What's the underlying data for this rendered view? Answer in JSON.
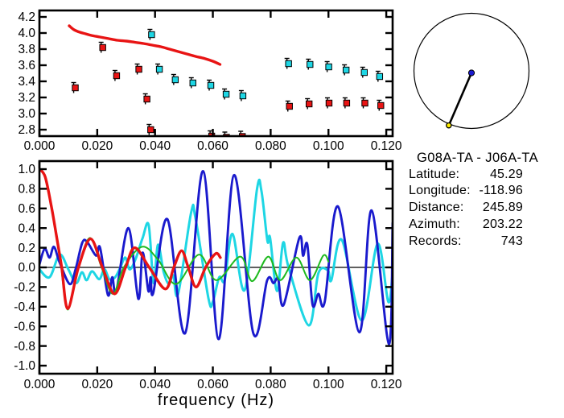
{
  "colors": {
    "red": "#e81414",
    "cyan": "#1ed6e4",
    "blue": "#1a1acd",
    "green": "#1fba1f",
    "yellow": "#ffee00",
    "axis": "#000000",
    "background": "#ffffff"
  },
  "info": {
    "station_pair": "G08A-TA - J06A-TA",
    "rows": [
      {
        "label": "Latitude:",
        "value": "45.29"
      },
      {
        "label": "Longitude:",
        "value": "-118.96"
      },
      {
        "label": "Distance:",
        "value": "245.89"
      },
      {
        "label": "Azimuth:",
        "value": "203.22"
      },
      {
        "label": "Records:",
        "value": "743"
      }
    ]
  },
  "azimuth_diagram": {
    "azimuth_deg": 203.22,
    "center_dot_color_key": "blue",
    "azimuth_dot_color_key": "yellow"
  },
  "chart_data": [
    {
      "type": "scatter",
      "title": "",
      "xlabel": "",
      "ylabel": "",
      "xlim": [
        0,
        0.1222
      ],
      "ylim": [
        2.72,
        4.28
      ],
      "grid": false,
      "xticks": {
        "values": [
          0,
          0.02,
          0.04,
          0.06,
          0.08,
          0.1,
          0.12
        ],
        "labels": [
          "0.000",
          "0.020",
          "0.040",
          "0.060",
          "0.080",
          "0.100",
          "0.120"
        ]
      },
      "yticks": {
        "values": [
          2.8,
          3.0,
          3.2,
          3.4,
          3.6,
          3.8,
          4.0,
          4.2
        ],
        "labels": [
          "2.8",
          "3.0",
          "3.2",
          "3.4",
          "3.6",
          "3.8",
          "4.0",
          "4.2"
        ]
      },
      "series": [
        {
          "name": "red-reference-curve",
          "kind": "line",
          "color_key": "red",
          "stroke_width": 3.4,
          "points": [
            [
              0.0103,
              4.09
            ],
            [
              0.012,
              4.04
            ],
            [
              0.014,
              4.01
            ],
            [
              0.016,
              3.99
            ],
            [
              0.018,
              3.97
            ],
            [
              0.021,
              3.95
            ],
            [
              0.024,
              3.93
            ],
            [
              0.027,
              3.91
            ],
            [
              0.03,
              3.9
            ],
            [
              0.033,
              3.885
            ],
            [
              0.036,
              3.87
            ],
            [
              0.039,
              3.85
            ],
            [
              0.042,
              3.83
            ],
            [
              0.045,
              3.8
            ],
            [
              0.048,
              3.77
            ],
            [
              0.051,
              3.74
            ],
            [
              0.054,
              3.71
            ],
            [
              0.057,
              3.685
            ],
            [
              0.06,
              3.65
            ],
            [
              0.0625,
              3.61
            ]
          ]
        },
        {
          "name": "red-square-points",
          "kind": "scatter",
          "color_key": "red",
          "points": [
            [
              0.0124,
              3.32
            ],
            [
              0.0219,
              3.82
            ],
            [
              0.0267,
              3.47
            ],
            [
              0.0344,
              3.55
            ],
            [
              0.0372,
              3.18
            ],
            [
              0.0385,
              2.8
            ],
            [
              0.0596,
              2.72
            ],
            [
              0.0647,
              2.705
            ],
            [
              0.0702,
              2.715
            ],
            [
              0.0865,
              3.09
            ],
            [
              0.0933,
              3.12
            ],
            [
              0.1002,
              3.13
            ],
            [
              0.1063,
              3.13
            ],
            [
              0.1126,
              3.13
            ],
            [
              0.1181,
              3.1
            ]
          ]
        },
        {
          "name": "cyan-square-points",
          "kind": "scatter",
          "color_key": "cyan",
          "points": [
            [
              0.0388,
              3.98
            ],
            [
              0.0415,
              3.55
            ],
            [
              0.047,
              3.42
            ],
            [
              0.0531,
              3.38
            ],
            [
              0.0593,
              3.35
            ],
            [
              0.0646,
              3.24
            ],
            [
              0.0704,
              3.22
            ],
            [
              0.0862,
              3.62
            ],
            [
              0.0936,
              3.61
            ],
            [
              0.1001,
              3.58
            ],
            [
              0.1061,
              3.54
            ],
            [
              0.1124,
              3.51
            ],
            [
              0.1177,
              3.46
            ]
          ]
        }
      ]
    },
    {
      "type": "line",
      "title": "",
      "xlabel": "frequency (Hz)",
      "ylabel": "",
      "xlim": [
        0,
        0.1222
      ],
      "ylim": [
        -1.082,
        1.082
      ],
      "grid": false,
      "zero_line": true,
      "xticks": {
        "values": [
          0,
          0.02,
          0.04,
          0.06,
          0.08,
          0.1,
          0.12
        ],
        "labels": [
          "0.000",
          "0.020",
          "0.040",
          "0.060",
          "0.080",
          "0.100",
          "0.120"
        ]
      },
      "yticks": {
        "values": [
          -1.0,
          -0.8,
          -0.6,
          -0.4,
          -0.2,
          0.0,
          0.2,
          0.4,
          0.6,
          0.8,
          1.0
        ],
        "labels": [
          "-1.0",
          "-0.8",
          "-0.6",
          "-0.4",
          "-0.2",
          "0.0",
          "0.2",
          "0.4",
          "0.6",
          "0.8",
          "1.0"
        ]
      },
      "series": [
        {
          "name": "cyan-curve",
          "kind": "line",
          "color_key": "cyan",
          "stroke_width": 3.0,
          "points": [
            [
              0,
              -0.02
            ],
            [
              0.0035,
              -0.1
            ],
            [
              0.007,
              0.13
            ],
            [
              0.01,
              -0.02
            ],
            [
              0.0127,
              -0.16
            ],
            [
              0.0147,
              -0.05
            ],
            [
              0.0163,
              -0.13
            ],
            [
              0.0182,
              -0.04
            ],
            [
              0.0207,
              -0.12
            ],
            [
              0.0225,
              -0.02
            ],
            [
              0.0242,
              -0.12
            ],
            [
              0.0262,
              -0.1
            ],
            [
              0.028,
              0.0
            ],
            [
              0.0297,
              0.1
            ],
            [
              0.0312,
              -0.02
            ],
            [
              0.0332,
              0.08
            ],
            [
              0.0357,
              0.3
            ],
            [
              0.0378,
              0.43
            ],
            [
              0.0395,
              -0.16
            ],
            [
              0.041,
              0.23
            ],
            [
              0.043,
              -0.05
            ],
            [
              0.0448,
              -0.17
            ],
            [
              0.0463,
              -0.08
            ],
            [
              0.048,
              -0.27
            ],
            [
              0.0525,
              0.56
            ],
            [
              0.054,
              0.5
            ],
            [
              0.0585,
              -0.32
            ],
            [
              0.06,
              -0.35
            ],
            [
              0.0622,
              -0.1
            ],
            [
              0.0641,
              -0.13
            ],
            [
              0.0668,
              0.34
            ],
            [
              0.071,
              -0.23
            ],
            [
              0.0753,
              0.8
            ],
            [
              0.0768,
              0.78
            ],
            [
              0.0789,
              0.27
            ],
            [
              0.0798,
              0.3
            ],
            [
              0.0822,
              -0.24
            ],
            [
              0.0843,
              0.25
            ],
            [
              0.0862,
              0.0
            ],
            [
              0.0932,
              -0.59
            ],
            [
              0.0965,
              -0.06
            ],
            [
              0.0998,
              -0.03
            ],
            [
              0.101,
              -0.13
            ],
            [
              0.1046,
              0.28
            ],
            [
              0.1115,
              -0.54
            ],
            [
              0.117,
              0.24
            ],
            [
              0.1207,
              -0.35
            ],
            [
              0.1222,
              -0.05
            ]
          ]
        },
        {
          "name": "blue-curve",
          "kind": "line",
          "color_key": "blue",
          "stroke_width": 2.9,
          "points": [
            [
              0,
              0.03
            ],
            [
              0.0018,
              0.19
            ],
            [
              0.0035,
              0.1
            ],
            [
              0.005,
              0.21
            ],
            [
              0.007,
              0.05
            ],
            [
              0.0105,
              -0.17
            ],
            [
              0.0125,
              -0.02
            ],
            [
              0.0148,
              0.25
            ],
            [
              0.0165,
              0.26
            ],
            [
              0.0196,
              0.12
            ],
            [
              0.021,
              0.2
            ],
            [
              0.0237,
              -0.28
            ],
            [
              0.0252,
              -0.1
            ],
            [
              0.0266,
              -0.24
            ],
            [
              0.0308,
              0.4
            ],
            [
              0.0342,
              -0.32
            ],
            [
              0.0357,
              0.15
            ],
            [
              0.0377,
              -0.24
            ],
            [
              0.0385,
              -0.1
            ],
            [
              0.0394,
              -0.26
            ],
            [
              0.0443,
              0.49
            ],
            [
              0.0504,
              -0.67
            ],
            [
              0.0566,
              0.98
            ],
            [
              0.062,
              -0.73
            ],
            [
              0.0674,
              0.94
            ],
            [
              0.074,
              -0.67
            ],
            [
              0.0788,
              -0.13
            ],
            [
              0.081,
              -0.16
            ],
            [
              0.0826,
              -0.12
            ],
            [
              0.0845,
              -0.38
            ],
            [
              0.0899,
              0.3
            ],
            [
              0.0912,
              0.12
            ],
            [
              0.0927,
              0.23
            ],
            [
              0.0945,
              -0.38
            ],
            [
              0.0965,
              -0.27
            ],
            [
              0.0987,
              -0.35
            ],
            [
              0.1033,
              0.62
            ],
            [
              0.1107,
              -0.66
            ],
            [
              0.1149,
              0.58
            ],
            [
              0.1209,
              -0.78
            ],
            [
              0.1222,
              0.45
            ]
          ]
        },
        {
          "name": "green-curve",
          "kind": "line",
          "color_key": "green",
          "stroke_width": 2.0,
          "points": [
            [
              0.0075,
              0.02
            ],
            [
              0.0098,
              -0.43
            ],
            [
              0.0135,
              0.0
            ],
            [
              0.0175,
              0.3
            ],
            [
              0.0215,
              0.0
            ],
            [
              0.0254,
              -0.27
            ],
            [
              0.0292,
              0.0
            ],
            [
              0.0355,
              0.21
            ],
            [
              0.041,
              0.08
            ],
            [
              0.0473,
              -0.17
            ],
            [
              0.0552,
              0.13
            ],
            [
              0.0612,
              -0.13
            ],
            [
              0.0695,
              0.11
            ],
            [
              0.0736,
              -0.14
            ],
            [
              0.0792,
              0.11
            ],
            [
              0.0833,
              -0.13
            ],
            [
              0.0889,
              0.1
            ],
            [
              0.0936,
              -0.13
            ],
            [
              0.0982,
              0.12
            ],
            [
              0.1,
              0.06
            ]
          ]
        },
        {
          "name": "red-curve",
          "kind": "line",
          "color_key": "red",
          "stroke_width": 3.4,
          "points": [
            [
              0,
              1.0
            ],
            [
              0.002,
              0.92
            ],
            [
              0.0042,
              0.61
            ],
            [
              0.006,
              0.3
            ],
            [
              0.0077,
              0.0
            ],
            [
              0.0098,
              -0.42
            ],
            [
              0.0135,
              0.0
            ],
            [
              0.0177,
              0.29
            ],
            [
              0.0218,
              0.0
            ],
            [
              0.026,
              -0.27
            ],
            [
              0.0298,
              0.0
            ],
            [
              0.033,
              0.2
            ],
            [
              0.038,
              0.0
            ],
            [
              0.0436,
              -0.22
            ],
            [
              0.0465,
              0.0
            ],
            [
              0.0492,
              0.17
            ],
            [
              0.0515,
              0.0
            ],
            [
              0.0542,
              -0.2
            ],
            [
              0.0575,
              0.0
            ],
            [
              0.061,
              0.14
            ],
            [
              0.0626,
              0.1
            ]
          ]
        }
      ]
    }
  ]
}
